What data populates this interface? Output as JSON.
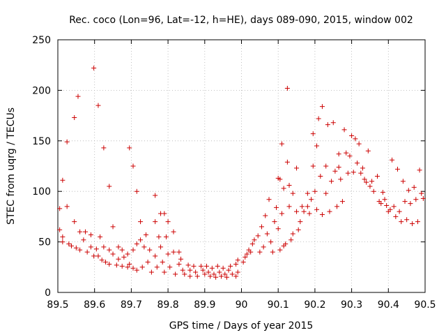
{
  "chart_data": {
    "type": "scatter",
    "title": "Rec. coco (Lon=96, Lat=-12, h=HE), days 089-090, 2015, window 002",
    "xlabel": "GPS time / Days of year 2015",
    "ylabel": "STEC from uqrg / TECUs",
    "xlim": [
      89.5,
      90.5
    ],
    "ylim": [
      0,
      250
    ],
    "grid": true,
    "marker": "plus",
    "color": "#cc0000",
    "x_ticks": [
      {
        "value": 89.5,
        "label": "89.5"
      },
      {
        "value": 89.6,
        "label": "89.6"
      },
      {
        "value": 89.7,
        "label": "89.7"
      },
      {
        "value": 89.8,
        "label": "89.8"
      },
      {
        "value": 89.9,
        "label": "89.9"
      },
      {
        "value": 90.0,
        "label": "90"
      },
      {
        "value": 90.1,
        "label": "90.1"
      },
      {
        "value": 90.2,
        "label": "90.2"
      },
      {
        "value": 90.3,
        "label": "90.3"
      },
      {
        "value": 90.4,
        "label": "90.4"
      },
      {
        "value": 90.5,
        "label": "90.5"
      }
    ],
    "y_ticks": [
      {
        "value": 0,
        "label": "0"
      },
      {
        "value": 50,
        "label": "50"
      },
      {
        "value": 100,
        "label": "100"
      },
      {
        "value": 150,
        "label": "150"
      },
      {
        "value": 200,
        "label": "200"
      },
      {
        "value": 250,
        "label": "250"
      }
    ],
    "points": [
      [
        89.505,
        83
      ],
      [
        89.505,
        62
      ],
      [
        89.513,
        111
      ],
      [
        89.513,
        55
      ],
      [
        89.513,
        50
      ],
      [
        89.525,
        149
      ],
      [
        89.525,
        85
      ],
      [
        89.53,
        48
      ],
      [
        89.537,
        46
      ],
      [
        89.545,
        173
      ],
      [
        89.545,
        70
      ],
      [
        89.555,
        194
      ],
      [
        89.55,
        44
      ],
      [
        89.56,
        42
      ],
      [
        89.56,
        60
      ],
      [
        89.575,
        60
      ],
      [
        89.57,
        52
      ],
      [
        89.58,
        40
      ],
      [
        89.59,
        57
      ],
      [
        89.59,
        45
      ],
      [
        89.598,
        222
      ],
      [
        89.598,
        36
      ],
      [
        89.605,
        43
      ],
      [
        89.61,
        185
      ],
      [
        89.61,
        36
      ],
      [
        89.615,
        55
      ],
      [
        89.62,
        32
      ],
      [
        89.625,
        143
      ],
      [
        89.625,
        45
      ],
      [
        89.63,
        30
      ],
      [
        89.64,
        105
      ],
      [
        89.64,
        42
      ],
      [
        89.64,
        28
      ],
      [
        89.65,
        65
      ],
      [
        89.65,
        38
      ],
      [
        89.66,
        27
      ],
      [
        89.665,
        45
      ],
      [
        89.665,
        33
      ],
      [
        89.675,
        42
      ],
      [
        89.675,
        26
      ],
      [
        89.68,
        35
      ],
      [
        89.69,
        38
      ],
      [
        89.69,
        25
      ],
      [
        89.695,
        143
      ],
      [
        89.695,
        28
      ],
      [
        89.705,
        125
      ],
      [
        89.705,
        42
      ],
      [
        89.705,
        24
      ],
      [
        89.715,
        100
      ],
      [
        89.715,
        48
      ],
      [
        89.715,
        22
      ],
      [
        89.725,
        70
      ],
      [
        89.725,
        52
      ],
      [
        89.73,
        25
      ],
      [
        89.735,
        45
      ],
      [
        89.74,
        57
      ],
      [
        89.745,
        30
      ],
      [
        89.75,
        42
      ],
      [
        89.755,
        20
      ],
      [
        89.765,
        96
      ],
      [
        89.765,
        70
      ],
      [
        89.765,
        36
      ],
      [
        89.77,
        25
      ],
      [
        89.775,
        55
      ],
      [
        89.78,
        78
      ],
      [
        89.78,
        45
      ],
      [
        89.785,
        30
      ],
      [
        89.79,
        78
      ],
      [
        89.79,
        20
      ],
      [
        89.795,
        55
      ],
      [
        89.8,
        70
      ],
      [
        89.8,
        38
      ],
      [
        89.805,
        25
      ],
      [
        89.815,
        60
      ],
      [
        89.815,
        40
      ],
      [
        89.82,
        18
      ],
      [
        89.83,
        40
      ],
      [
        89.83,
        28
      ],
      [
        89.835,
        33
      ],
      [
        89.84,
        22
      ],
      [
        89.845,
        18
      ],
      [
        89.855,
        27
      ],
      [
        89.86,
        22
      ],
      [
        89.86,
        16
      ],
      [
        89.87,
        26
      ],
      [
        89.875,
        20
      ],
      [
        89.88,
        16
      ],
      [
        89.89,
        26
      ],
      [
        89.895,
        22
      ],
      [
        89.9,
        18
      ],
      [
        89.905,
        26
      ],
      [
        89.91,
        20
      ],
      [
        89.915,
        16
      ],
      [
        89.92,
        24
      ],
      [
        89.925,
        18
      ],
      [
        89.93,
        15
      ],
      [
        89.935,
        26
      ],
      [
        89.94,
        20
      ],
      [
        89.945,
        16
      ],
      [
        89.95,
        24
      ],
      [
        89.955,
        18
      ],
      [
        89.96,
        15
      ],
      [
        89.965,
        22
      ],
      [
        89.97,
        26
      ],
      [
        89.975,
        18
      ],
      [
        89.985,
        16
      ],
      [
        89.985,
        28
      ],
      [
        89.99,
        20
      ],
      [
        89.99,
        32
      ],
      [
        90.005,
        30
      ],
      [
        90.01,
        35
      ],
      [
        90.015,
        38
      ],
      [
        90.02,
        42
      ],
      [
        90.025,
        40
      ],
      [
        90.03,
        48
      ],
      [
        90.035,
        52
      ],
      [
        90.045,
        56
      ],
      [
        90.05,
        40
      ],
      [
        90.055,
        65
      ],
      [
        90.06,
        45
      ],
      [
        90.065,
        76
      ],
      [
        90.07,
        58
      ],
      [
        90.075,
        92
      ],
      [
        90.08,
        50
      ],
      [
        90.085,
        40
      ],
      [
        90.09,
        70
      ],
      [
        90.095,
        84
      ],
      [
        90.1,
        113
      ],
      [
        90.1,
        63
      ],
      [
        90.105,
        112
      ],
      [
        90.105,
        42
      ],
      [
        90.11,
        147
      ],
      [
        90.11,
        78
      ],
      [
        90.115,
        103
      ],
      [
        90.115,
        46
      ],
      [
        90.12,
        48
      ],
      [
        90.125,
        202
      ],
      [
        90.125,
        129
      ],
      [
        90.13,
        106
      ],
      [
        90.13,
        85
      ],
      [
        90.135,
        52
      ],
      [
        90.14,
        98
      ],
      [
        90.14,
        58
      ],
      [
        90.15,
        123
      ],
      [
        90.15,
        80
      ],
      [
        90.155,
        62
      ],
      [
        90.16,
        70
      ],
      [
        90.165,
        85
      ],
      [
        90.17,
        80
      ],
      [
        90.18,
        98
      ],
      [
        90.18,
        85
      ],
      [
        90.185,
        78
      ],
      [
        90.19,
        92
      ],
      [
        90.195,
        157
      ],
      [
        90.195,
        125
      ],
      [
        90.2,
        100
      ],
      [
        90.205,
        145
      ],
      [
        90.205,
        82
      ],
      [
        90.21,
        172
      ],
      [
        90.215,
        115
      ],
      [
        90.22,
        184
      ],
      [
        90.22,
        77
      ],
      [
        90.23,
        125
      ],
      [
        90.23,
        98
      ],
      [
        90.235,
        166
      ],
      [
        90.24,
        80
      ],
      [
        90.245,
        110
      ],
      [
        90.25,
        168
      ],
      [
        90.255,
        120
      ],
      [
        90.26,
        85
      ],
      [
        90.265,
        137
      ],
      [
        90.265,
        124
      ],
      [
        90.27,
        112
      ],
      [
        90.275,
        90
      ],
      [
        90.28,
        161
      ],
      [
        90.285,
        138
      ],
      [
        90.29,
        118
      ],
      [
        90.295,
        135
      ],
      [
        90.3,
        155
      ],
      [
        90.305,
        119
      ],
      [
        90.31,
        152
      ],
      [
        90.315,
        128
      ],
      [
        90.32,
        147
      ],
      [
        90.325,
        118
      ],
      [
        90.33,
        123
      ],
      [
        90.335,
        112
      ],
      [
        90.34,
        109
      ],
      [
        90.345,
        140
      ],
      [
        90.35,
        105
      ],
      [
        90.355,
        110
      ],
      [
        90.36,
        100
      ],
      [
        90.37,
        115
      ],
      [
        90.375,
        90
      ],
      [
        90.38,
        88
      ],
      [
        90.385,
        99
      ],
      [
        90.39,
        92
      ],
      [
        90.395,
        86
      ],
      [
        90.4,
        80
      ],
      [
        90.405,
        82
      ],
      [
        90.41,
        131
      ],
      [
        90.415,
        85
      ],
      [
        90.42,
        75
      ],
      [
        90.425,
        122
      ],
      [
        90.43,
        80
      ],
      [
        90.435,
        70
      ],
      [
        90.44,
        110
      ],
      [
        90.445,
        90
      ],
      [
        90.45,
        72
      ],
      [
        90.455,
        101
      ],
      [
        90.46,
        88
      ],
      [
        90.465,
        68
      ],
      [
        90.47,
        104
      ],
      [
        90.475,
        92
      ],
      [
        90.48,
        70
      ],
      [
        90.485,
        121
      ],
      [
        90.49,
        98
      ],
      [
        90.495,
        93
      ]
    ]
  }
}
